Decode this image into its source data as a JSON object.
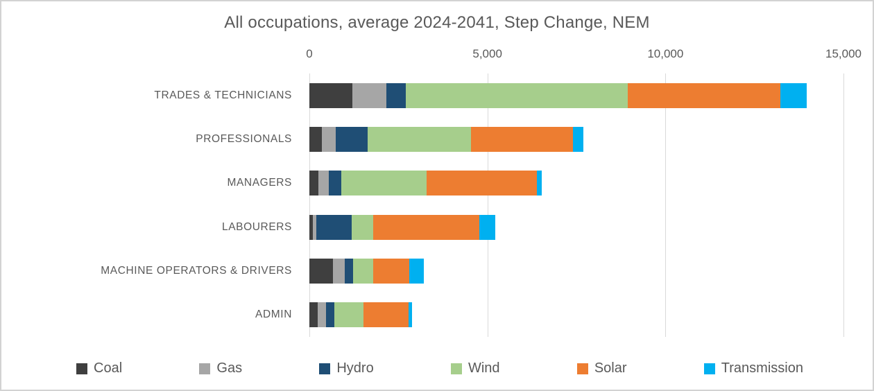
{
  "chart_data": {
    "type": "bar",
    "orientation": "horizontal",
    "stacked": true,
    "title": "All occupations, average 2024-2041, Step Change, NEM",
    "categories": [
      "TRADES & TECHNICIANS",
      "PROFESSIONALS",
      "MANAGERS",
      "LABOURERS",
      "MACHINE OPERATORS & DRIVERS",
      "ADMIN"
    ],
    "series": [
      {
        "name": "Coal",
        "color": "#3f3f3f",
        "values": [
          1200,
          360,
          255,
          105,
          665,
          230
        ]
      },
      {
        "name": "Gas",
        "color": "#a6a6a6",
        "values": [
          970,
          380,
          285,
          85,
          325,
          245
        ]
      },
      {
        "name": "Hydro",
        "color": "#1f4e75",
        "values": [
          540,
          890,
          350,
          995,
          245,
          235
        ]
      },
      {
        "name": "Wind",
        "color": "#a6ce8c",
        "values": [
          6240,
          2900,
          2400,
          605,
          560,
          805
        ]
      },
      {
        "name": "Solar",
        "color": "#ed7d31",
        "values": [
          4270,
          2880,
          3100,
          2980,
          1015,
          1280
        ]
      },
      {
        "name": "Transmission",
        "color": "#00b0f0",
        "values": [
          740,
          295,
          135,
          445,
          400,
          85
        ]
      }
    ],
    "xlim": [
      0,
      15000
    ],
    "x_ticks": [
      {
        "label": "0",
        "value": 0
      },
      {
        "label": "5,000",
        "value": 5000
      },
      {
        "label": "10,000",
        "value": 10000
      },
      {
        "label": "15,000",
        "value": 15000
      }
    ],
    "legend_position": "bottom",
    "grid": "vertical",
    "axis_position": "top"
  },
  "style": {
    "text_color": "#595959",
    "gridline_color": "#d9d9d9",
    "background": "#ffffff",
    "border_color": "#d2d2d2"
  }
}
